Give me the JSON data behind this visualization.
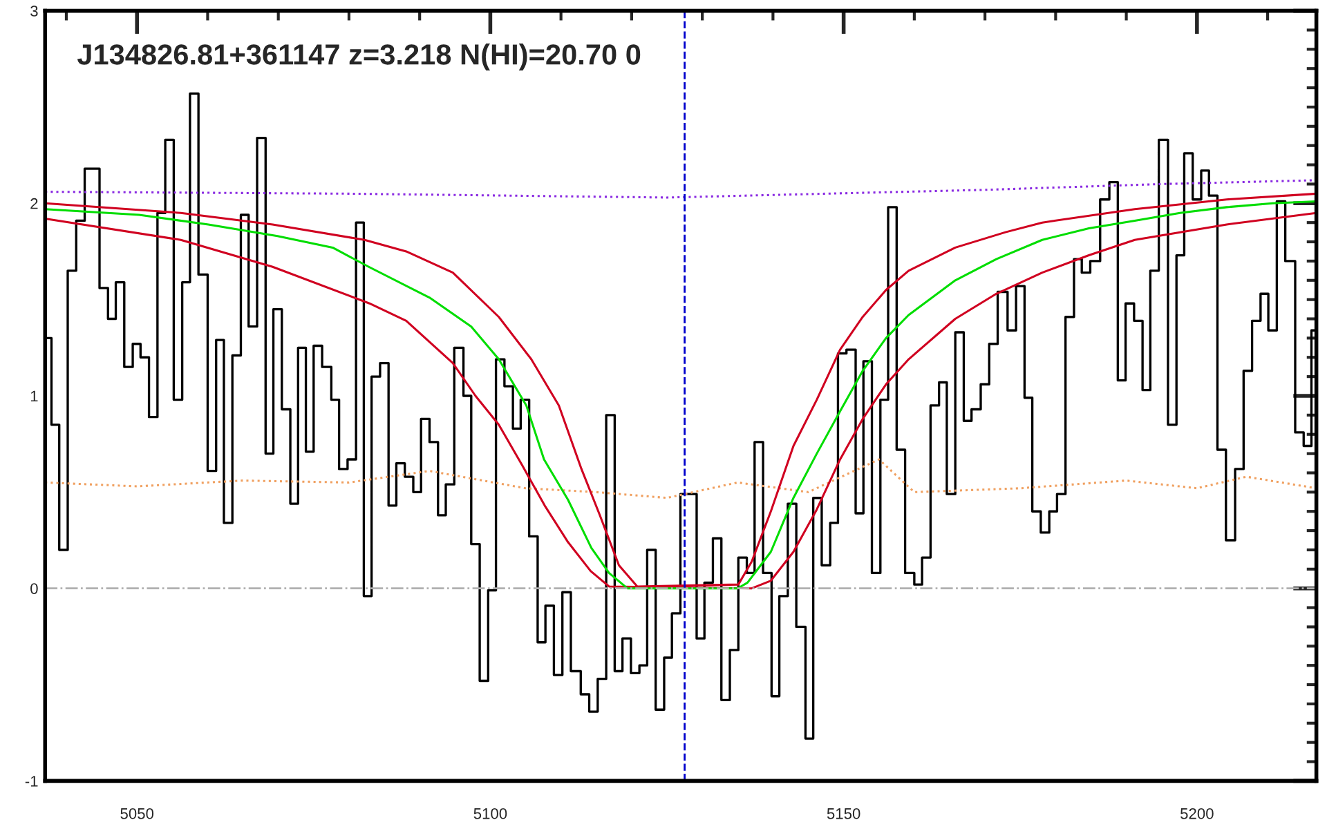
{
  "chart_data": {
    "type": "line",
    "title": "J134826.81+361147 z=3.218 N(HI)=20.70 0",
    "xlim": [
      5037,
      5216.9
    ],
    "xticks": [
      5050,
      5100,
      5150,
      5200
    ],
    "ylim": [
      -1,
      3
    ],
    "yticks": [
      -1,
      0,
      1,
      2,
      3
    ],
    "grid": false,
    "legend": false,
    "ref_lines": [
      {
        "axis": "y",
        "value": 0,
        "color": "#b0b0b0",
        "line_style": "dashdot"
      },
      {
        "axis": "x",
        "value": 5127.5,
        "color": "#0000cc",
        "line_style": "dashed"
      }
    ],
    "series": [
      {
        "type": "step",
        "color": "#000000",
        "line_style": "solid",
        "x": [
          5037.0,
          5037.9,
          5039.0,
          5040.2,
          5041.4,
          5042.6,
          5044.7,
          5045.9,
          5047.0,
          5048.2,
          5049.4,
          5050.5,
          5051.7,
          5052.9,
          5054.0,
          5055.2,
          5056.4,
          5057.5,
          5058.7,
          5060.0,
          5061.2,
          5062.3,
          5063.5,
          5064.7,
          5065.8,
          5067.0,
          5068.2,
          5069.3,
          5070.5,
          5071.7,
          5072.8,
          5073.9,
          5075.0,
          5076.2,
          5077.5,
          5078.6,
          5079.8,
          5081.0,
          5082.1,
          5083.2,
          5084.4,
          5085.6,
          5086.7,
          5087.9,
          5089.1,
          5090.2,
          5091.4,
          5092.6,
          5093.7,
          5094.9,
          5096.2,
          5097.3,
          5098.5,
          5099.7,
          5100.8,
          5102.0,
          5103.2,
          5104.3,
          5105.5,
          5106.7,
          5107.8,
          5109.0,
          5110.2,
          5111.4,
          5112.8,
          5114.0,
          5115.2,
          5116.4,
          5117.6,
          5118.7,
          5119.9,
          5121.1,
          5122.2,
          5123.4,
          5124.6,
          5125.7,
          5126.9,
          5129.2,
          5130.3,
          5131.5,
          5132.7,
          5133.9,
          5135.1,
          5136.3,
          5137.4,
          5138.6,
          5139.8,
          5140.9,
          5142.1,
          5143.3,
          5144.6,
          5145.7,
          5146.9,
          5148.1,
          5149.2,
          5150.4,
          5151.7,
          5152.8,
          5154.0,
          5155.2,
          5156.3,
          5157.5,
          5158.7,
          5160.0,
          5161.1,
          5162.3,
          5163.5,
          5164.6,
          5165.8,
          5167.0,
          5168.1,
          5169.4,
          5170.6,
          5171.8,
          5173.2,
          5174.4,
          5175.6,
          5176.7,
          5177.9,
          5179.1,
          5180.2,
          5181.4,
          5182.6,
          5183.7,
          5184.9,
          5186.3,
          5187.6,
          5188.8,
          5189.9,
          5191.1,
          5192.3,
          5193.4,
          5194.6,
          5195.9,
          5197.1,
          5198.2,
          5199.4,
          5200.6,
          5201.7,
          5202.9,
          5204.1,
          5205.4,
          5206.6,
          5207.8,
          5209.0,
          5210.1,
          5211.3,
          5212.5,
          5213.9,
          5215.1,
          5216.2,
          5216.9
        ],
        "values": [
          1.3,
          0.85,
          0.2,
          1.65,
          1.91,
          2.18,
          1.56,
          1.4,
          1.59,
          1.15,
          1.27,
          1.2,
          0.89,
          1.95,
          2.33,
          0.98,
          1.59,
          2.57,
          1.63,
          0.61,
          1.29,
          0.34,
          1.21,
          1.94,
          1.36,
          2.34,
          0.7,
          1.45,
          0.93,
          0.44,
          1.25,
          0.71,
          1.26,
          1.15,
          0.98,
          0.62,
          0.67,
          1.9,
          -0.04,
          1.1,
          1.17,
          0.43,
          0.65,
          0.58,
          0.5,
          0.88,
          0.76,
          0.38,
          0.54,
          1.25,
          1.0,
          0.23,
          -0.48,
          -0.01,
          1.19,
          1.05,
          0.83,
          0.98,
          0.27,
          -0.28,
          -0.09,
          -0.45,
          -0.02,
          -0.43,
          -0.55,
          -0.64,
          -0.47,
          0.9,
          -0.43,
          -0.26,
          -0.44,
          -0.4,
          0.2,
          -0.63,
          -0.36,
          -0.13,
          0.49,
          -0.26,
          0.03,
          0.26,
          -0.58,
          -0.32,
          0.16,
          0.08,
          0.76,
          0.08,
          -0.56,
          -0.04,
          0.44,
          -0.2,
          -0.78,
          0.47,
          0.12,
          0.34,
          1.22,
          1.24,
          0.39,
          1.18,
          0.08,
          0.98,
          1.98,
          0.72,
          0.08,
          0.02,
          0.16,
          0.95,
          1.07,
          0.49,
          1.33,
          0.87,
          0.93,
          1.06,
          1.27,
          1.54,
          1.34,
          1.57,
          0.99,
          0.4,
          0.29,
          0.4,
          0.49,
          1.41,
          1.71,
          1.64,
          1.7,
          2.02,
          2.11,
          1.08,
          1.48,
          1.39,
          1.03,
          1.65,
          2.33,
          0.85,
          1.73,
          2.26,
          2.02,
          2.17,
          2.04,
          0.72,
          0.25,
          0.62,
          1.13,
          1.39,
          1.53,
          1.34,
          2.01,
          1.7,
          0.81,
          0.74,
          1.34,
          1.34
        ]
      },
      {
        "color": "#8a2be2",
        "line_style": "dotted",
        "x": [
          5037,
          5080,
          5125,
          5170,
          5195,
          5216.9
        ],
        "values": [
          2.06,
          2.05,
          2.03,
          2.07,
          2.1,
          2.12
        ]
      },
      {
        "color": "#f0a060",
        "line_style": "dotted",
        "x": [
          5037,
          5050,
          5065,
          5080,
          5091.4,
          5105,
          5115,
          5125,
          5135,
          5145,
          5155,
          5160,
          5175,
          5190,
          5200,
          5207,
          5216.9
        ],
        "values": [
          0.55,
          0.53,
          0.56,
          0.55,
          0.61,
          0.52,
          0.5,
          0.47,
          0.55,
          0.5,
          0.67,
          0.5,
          0.52,
          0.56,
          0.52,
          0.58,
          0.52
        ]
      },
      {
        "color": "#d00020",
        "line_style": "solid",
        "x": [
          5037.0,
          5056.2,
          5069.2,
          5082.2,
          5088.1,
          5094.7,
          5101.2,
          5105.8,
          5109.7,
          5112.9,
          5115.5,
          5118.2,
          5120.8,
          5135.1,
          5137.0,
          5139.7,
          5142.9,
          5146.2,
          5149.5,
          5152.7,
          5156.0,
          5159.2,
          5165.8,
          5172.9,
          5178.1,
          5191.2,
          5204.2,
          5216.9
        ],
        "values": [
          2.0,
          1.95,
          1.89,
          1.81,
          1.75,
          1.64,
          1.41,
          1.19,
          0.95,
          0.62,
          0.38,
          0.12,
          0.01,
          0.02,
          0.14,
          0.4,
          0.74,
          0.98,
          1.24,
          1.41,
          1.55,
          1.65,
          1.77,
          1.85,
          1.9,
          1.97,
          2.02,
          2.05
        ]
      },
      {
        "color": "#d00020",
        "line_style": "solid",
        "x": [
          5037.0,
          5056.2,
          5069.2,
          5082.9,
          5088.1,
          5094.7,
          5097.9,
          5101.2,
          5104.5,
          5107.7,
          5111.0,
          5114.2,
          5116.8,
          5137.0,
          5139.7,
          5142.9,
          5146.2,
          5149.5,
          5152.7,
          5156.0,
          5159.2,
          5165.8,
          5171.6,
          5178.1,
          5184.7,
          5191.2,
          5204.2,
          5216.9
        ],
        "values": [
          1.92,
          1.81,
          1.67,
          1.48,
          1.39,
          1.17,
          1.0,
          0.85,
          0.64,
          0.43,
          0.24,
          0.09,
          0.01,
          0,
          0.04,
          0.19,
          0.41,
          0.67,
          0.88,
          1.06,
          1.19,
          1.4,
          1.53,
          1.64,
          1.73,
          1.81,
          1.89,
          1.95
        ]
      },
      {
        "color": "#00dd00",
        "line_style": "solid",
        "x": [
          5037.0,
          5050.3,
          5060.1,
          5069.9,
          5077.7,
          5082.8,
          5091.4,
          5097.3,
          5101.2,
          5105.1,
          5107.6,
          5111.0,
          5114.3,
          5116.8,
          5119.4,
          5135.0,
          5136.4,
          5139.7,
          5142.9,
          5146.2,
          5149.5,
          5152.7,
          5156.0,
          5159.2,
          5165.8,
          5171.6,
          5178.1,
          5184.7,
          5191.2,
          5197.6,
          5204.2,
          5210.7,
          5216.9
        ],
        "values": [
          1.97,
          1.94,
          1.89,
          1.83,
          1.77,
          1.67,
          1.51,
          1.36,
          1.19,
          0.95,
          0.67,
          0.46,
          0.21,
          0.08,
          0,
          0,
          0.03,
          0.19,
          0.47,
          0.7,
          0.92,
          1.13,
          1.3,
          1.42,
          1.6,
          1.71,
          1.81,
          1.87,
          1.91,
          1.95,
          1.98,
          2.0,
          2.01
        ]
      }
    ]
  }
}
